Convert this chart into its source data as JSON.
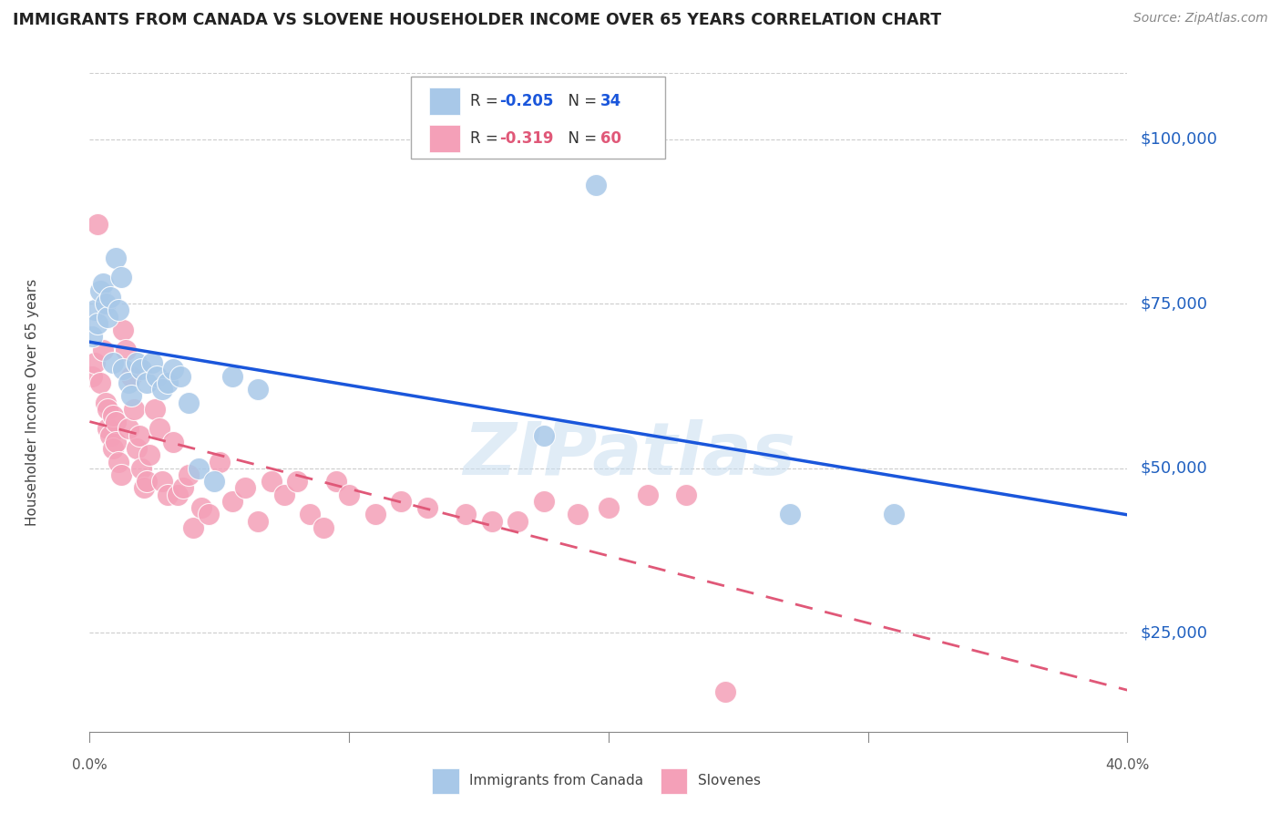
{
  "title": "IMMIGRANTS FROM CANADA VS SLOVENE HOUSEHOLDER INCOME OVER 65 YEARS CORRELATION CHART",
  "source": "Source: ZipAtlas.com",
  "ylabel": "Householder Income Over 65 years",
  "yticks": [
    25000,
    50000,
    75000,
    100000
  ],
  "ytick_labels": [
    "$25,000",
    "$50,000",
    "$75,000",
    "$100,000"
  ],
  "xlim": [
    0.0,
    0.4
  ],
  "ylim": [
    10000,
    110000
  ],
  "color_canada": "#a8c8e8",
  "color_slovene": "#f4a0b8",
  "color_line_canada": "#1a56db",
  "color_line_slovene": "#e05878",
  "color_ytick_labels": "#2060c0",
  "watermark": "ZIPatlas",
  "canada_x": [
    0.001,
    0.002,
    0.003,
    0.004,
    0.005,
    0.006,
    0.007,
    0.008,
    0.009,
    0.01,
    0.011,
    0.012,
    0.013,
    0.015,
    0.016,
    0.018,
    0.02,
    0.022,
    0.024,
    0.026,
    0.028,
    0.03,
    0.032,
    0.035,
    0.038,
    0.042,
    0.048,
    0.055,
    0.065,
    0.175,
    0.195,
    0.27,
    0.31
  ],
  "canada_y": [
    70000,
    74000,
    72000,
    77000,
    78000,
    75000,
    73000,
    76000,
    66000,
    82000,
    74000,
    79000,
    65000,
    63000,
    61000,
    66000,
    65000,
    63000,
    66000,
    64000,
    62000,
    63000,
    65000,
    64000,
    60000,
    50000,
    48000,
    64000,
    62000,
    55000,
    93000,
    43000,
    43000
  ],
  "slovene_x": [
    0.001,
    0.002,
    0.003,
    0.004,
    0.005,
    0.006,
    0.007,
    0.007,
    0.008,
    0.009,
    0.009,
    0.01,
    0.01,
    0.011,
    0.012,
    0.013,
    0.014,
    0.015,
    0.016,
    0.017,
    0.018,
    0.019,
    0.02,
    0.021,
    0.022,
    0.023,
    0.025,
    0.027,
    0.028,
    0.03,
    0.032,
    0.034,
    0.036,
    0.038,
    0.04,
    0.043,
    0.046,
    0.05,
    0.055,
    0.06,
    0.065,
    0.07,
    0.075,
    0.08,
    0.085,
    0.09,
    0.095,
    0.1,
    0.11,
    0.12,
    0.13,
    0.145,
    0.155,
    0.165,
    0.175,
    0.188,
    0.2,
    0.215,
    0.23,
    0.245
  ],
  "slovene_y": [
    64000,
    66000,
    87000,
    63000,
    68000,
    60000,
    56000,
    59000,
    55000,
    58000,
    53000,
    57000,
    54000,
    51000,
    49000,
    71000,
    68000,
    56000,
    64000,
    59000,
    53000,
    55000,
    50000,
    47000,
    48000,
    52000,
    59000,
    56000,
    48000,
    46000,
    54000,
    46000,
    47000,
    49000,
    41000,
    44000,
    43000,
    51000,
    45000,
    47000,
    42000,
    48000,
    46000,
    48000,
    43000,
    41000,
    48000,
    46000,
    43000,
    45000,
    44000,
    43000,
    42000,
    42000,
    45000,
    43000,
    44000,
    46000,
    46000,
    16000
  ]
}
